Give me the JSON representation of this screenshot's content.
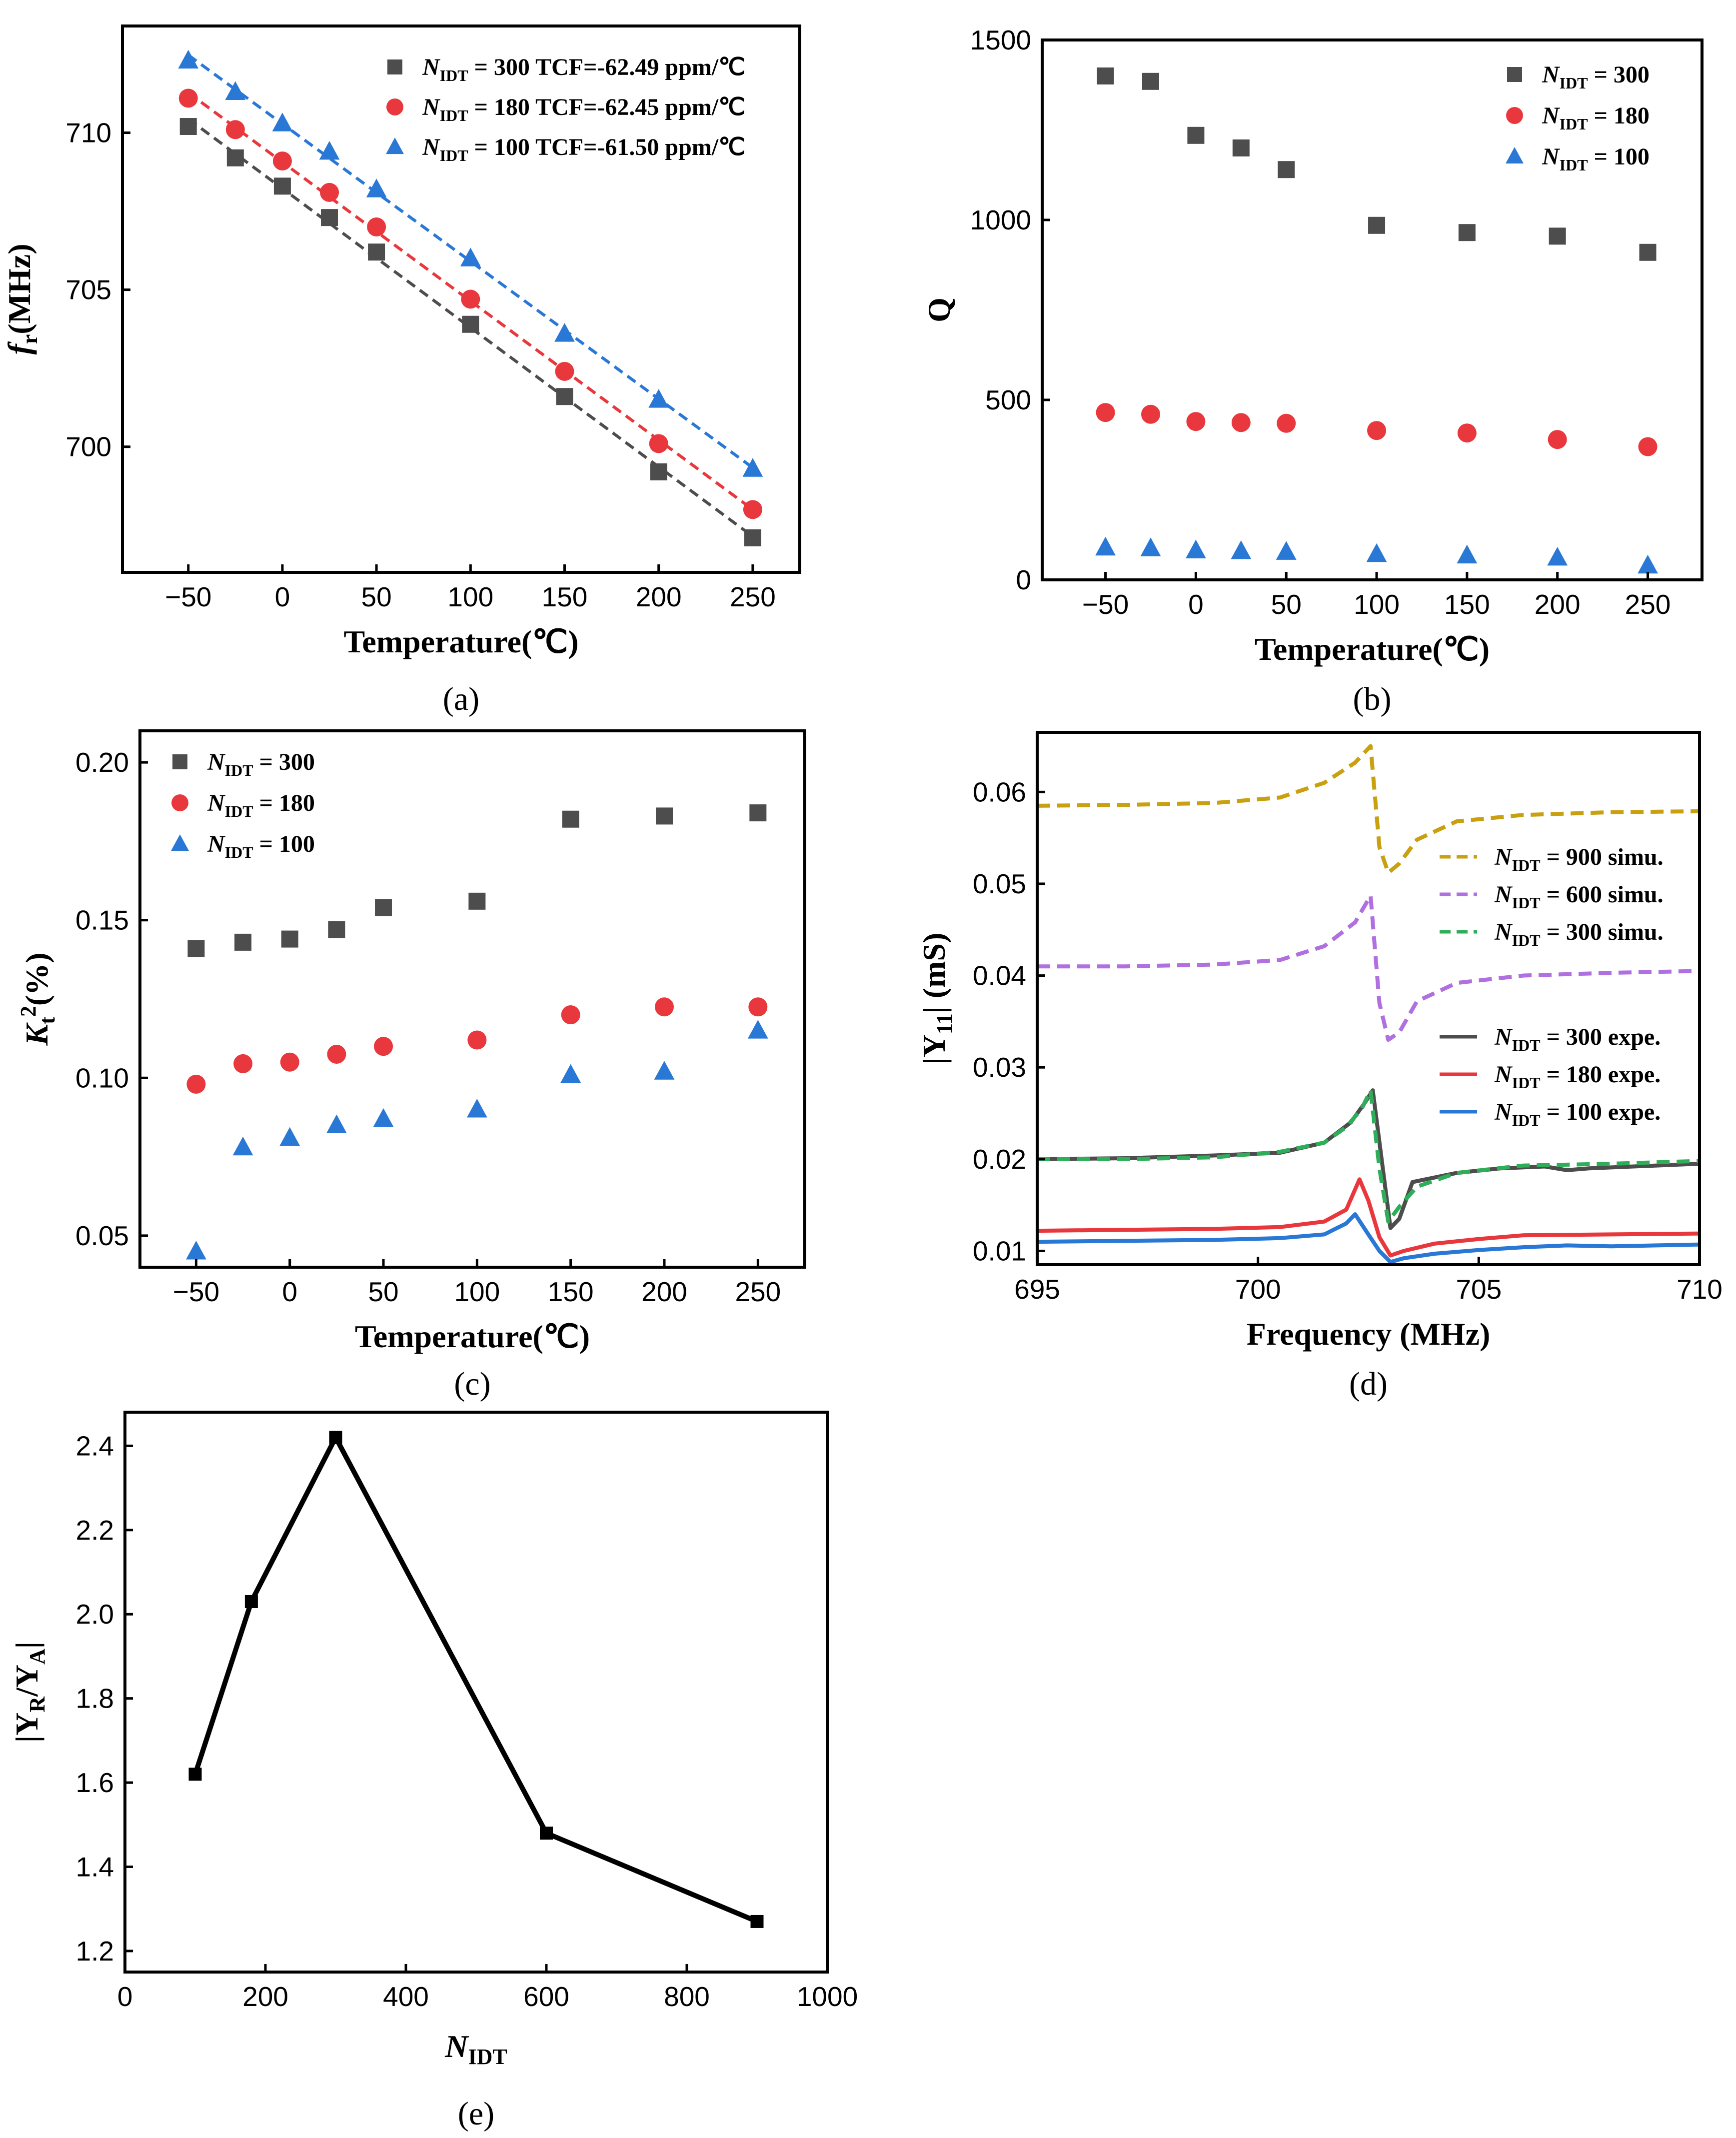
{
  "colors": {
    "N300": "#4d4d4d",
    "N180": "#e8383d",
    "N100": "#2a78d6",
    "N900sim": "#c9a010",
    "N600sim": "#b070e0",
    "N300sim": "#2fae5a",
    "axis": "#000000",
    "line_e": "#000000"
  },
  "chart_data": [
    {
      "id": "a",
      "type": "scatter",
      "panel_label": "(a)",
      "title": "",
      "xlabel": "Temperature(℃)",
      "ylabel": "f_r(MHz)",
      "xlim": [
        -85,
        275
      ],
      "ylim": [
        696.0,
        713.4
      ],
      "xticks": [
        -50,
        0,
        50,
        100,
        150,
        200,
        250
      ],
      "yticks": [
        700,
        705,
        710
      ],
      "x": [
        -50,
        -25,
        0,
        25,
        50,
        100,
        150,
        200,
        250
      ],
      "legend": {
        "position": "top-right"
      },
      "series": [
        {
          "key": "N300",
          "name_sub": "IDT",
          "name_text": " = 300 TCF=-62.49 ppm/℃",
          "marker": "square",
          "fit": true,
          "values": [
            710.2,
            709.2,
            708.3,
            707.3,
            706.2,
            703.9,
            701.6,
            699.2,
            697.1
          ]
        },
        {
          "key": "N180",
          "name_sub": "IDT",
          "name_text": " = 180 TCF=-62.45 ppm/℃",
          "marker": "circle",
          "fit": true,
          "values": [
            711.1,
            710.1,
            709.1,
            708.1,
            707.0,
            704.7,
            702.4,
            700.1,
            698.0
          ]
        },
        {
          "key": "N100",
          "name_sub": "IDT",
          "name_text": " = 100 TCF=-61.50 ppm/℃",
          "marker": "triangle",
          "fit": true,
          "values": [
            712.3,
            711.3,
            710.3,
            709.4,
            708.2,
            706.0,
            703.6,
            701.5,
            699.3
          ]
        }
      ]
    },
    {
      "id": "b",
      "type": "scatter",
      "panel_label": "(b)",
      "title": "",
      "xlabel": "Temperature(℃)",
      "ylabel": "Q",
      "xlim": [
        -85,
        280
      ],
      "ylim": [
        0,
        1500
      ],
      "xticks": [
        -50,
        0,
        50,
        100,
        150,
        200,
        250
      ],
      "yticks": [
        0,
        500,
        1000,
        1500
      ],
      "x": [
        -50,
        -25,
        0,
        25,
        50,
        100,
        150,
        200,
        250
      ],
      "legend": {
        "position": "top-right"
      },
      "series": [
        {
          "key": "N300",
          "name_sub": "IDT",
          "name_text": " = 300",
          "marker": "square",
          "values": [
            1400,
            1385,
            1235,
            1200,
            1140,
            985,
            965,
            955,
            910
          ]
        },
        {
          "key": "N180",
          "name_sub": "IDT",
          "name_text": " = 180",
          "marker": "circle",
          "values": [
            465,
            460,
            440,
            437,
            435,
            415,
            408,
            390,
            370
          ]
        },
        {
          "key": "N100",
          "name_sub": "IDT",
          "name_text": " = 100",
          "marker": "triangle",
          "values": [
            90,
            88,
            82,
            80,
            78,
            72,
            68,
            62,
            40
          ]
        }
      ]
    },
    {
      "id": "c",
      "type": "scatter",
      "panel_label": "(c)",
      "title": "",
      "xlabel": "Temperature(℃)",
      "ylabel": "K_t^2(%)",
      "xlim": [
        -80,
        275
      ],
      "ylim": [
        0.04,
        0.21
      ],
      "xticks": [
        -50,
        0,
        50,
        100,
        150,
        200,
        250
      ],
      "yticks": [
        0.05,
        0.1,
        0.15,
        0.2
      ],
      "ytick_labels": [
        "0.05",
        "0.10",
        "0.15",
        "0.20"
      ],
      "x": [
        -50,
        -25,
        0,
        25,
        50,
        100,
        150,
        200,
        250
      ],
      "legend": {
        "position": "top-left"
      },
      "series": [
        {
          "key": "N300",
          "name_sub": "IDT",
          "name_text": " = 300",
          "marker": "square",
          "values": [
            0.141,
            0.143,
            0.144,
            0.147,
            0.154,
            0.156,
            0.182,
            0.183,
            0.184
          ]
        },
        {
          "key": "N180",
          "name_sub": "IDT",
          "name_text": " = 180",
          "marker": "circle",
          "values": [
            0.098,
            0.1045,
            0.105,
            0.1075,
            0.11,
            0.112,
            0.12,
            0.1225,
            0.1225
          ]
        },
        {
          "key": "N100",
          "name_sub": "IDT",
          "name_text": " = 100",
          "marker": "triangle",
          "values": [
            0.045,
            0.078,
            0.081,
            0.085,
            0.087,
            0.09,
            0.101,
            0.102,
            0.115
          ]
        }
      ]
    },
    {
      "id": "d",
      "type": "line",
      "panel_label": "(d)",
      "title": "",
      "xlabel": "Frequency (MHz)",
      "ylabel": "|Y11| (mS)",
      "xlim": [
        695,
        710
      ],
      "ylim": [
        0.0085,
        0.0665
      ],
      "xticks": [
        695,
        700,
        705,
        710
      ],
      "yticks": [
        0.01,
        0.02,
        0.03,
        0.04,
        0.05,
        0.06
      ],
      "ytick_labels": [
        "0.01",
        "0.02",
        "0.03",
        "0.04",
        "0.05",
        "0.06"
      ],
      "legend": {
        "position": "right"
      },
      "series": [
        {
          "key": "N900sim",
          "name_sub": "IDT",
          "name_text": " = 900 simu.",
          "dashed": true,
          "x": [
            695,
            697,
            699,
            700.5,
            701.5,
            702.2,
            702.55,
            702.75,
            702.95,
            703.2,
            703.6,
            704.5,
            706,
            708,
            710
          ],
          "values": [
            0.0585,
            0.0586,
            0.0588,
            0.0594,
            0.061,
            0.0632,
            0.065,
            0.054,
            0.0512,
            0.0522,
            0.0548,
            0.0568,
            0.0575,
            0.0578,
            0.0579
          ]
        },
        {
          "key": "N600sim",
          "name_sub": "IDT",
          "name_text": " = 600 simu.",
          "dashed": true,
          "x": [
            695,
            697,
            699,
            700.5,
            701.5,
            702.2,
            702.55,
            702.75,
            702.95,
            703.2,
            703.6,
            704.5,
            706,
            708,
            710
          ],
          "values": [
            0.041,
            0.041,
            0.0412,
            0.0417,
            0.0432,
            0.0458,
            0.0487,
            0.037,
            0.033,
            0.0338,
            0.0372,
            0.0392,
            0.04,
            0.0403,
            0.0405
          ]
        },
        {
          "key": "N300sim",
          "name_sub": "IDT",
          "name_text": " = 300 simu.",
          "dashed": true,
          "x": [
            695,
            697,
            699,
            700.5,
            701.5,
            702.0,
            702.35,
            702.55,
            702.75,
            702.95,
            703.2,
            703.6,
            704.5,
            706,
            708,
            710
          ],
          "values": [
            0.02,
            0.02,
            0.0202,
            0.0208,
            0.0218,
            0.0235,
            0.0255,
            0.0275,
            0.019,
            0.0132,
            0.0148,
            0.017,
            0.0185,
            0.0193,
            0.0195,
            0.0198
          ]
        },
        {
          "key": "N300",
          "name_sub": "IDT",
          "name_text": " = 300 expe.",
          "dashed": false,
          "x": [
            695,
            697,
            699,
            700.5,
            701.5,
            702.1,
            702.4,
            702.6,
            702.8,
            703.0,
            703.2,
            703.5,
            704.0,
            704.5,
            705.5,
            706.5,
            707.0,
            707.5,
            708.5,
            710
          ],
          "values": [
            0.02,
            0.0201,
            0.0204,
            0.0207,
            0.0218,
            0.024,
            0.026,
            0.0275,
            0.02,
            0.0125,
            0.0135,
            0.0175,
            0.018,
            0.0185,
            0.019,
            0.0192,
            0.0188,
            0.019,
            0.0192,
            0.0195
          ]
        },
        {
          "key": "N180",
          "name_sub": "IDT",
          "name_text": " = 180 expe.",
          "dashed": false,
          "x": [
            695,
            697,
            699,
            700.5,
            701.5,
            702.0,
            702.3,
            702.5,
            702.75,
            703.0,
            703.3,
            704.0,
            705.0,
            706.0,
            708.0,
            710
          ],
          "values": [
            0.0122,
            0.0123,
            0.0124,
            0.0126,
            0.0132,
            0.0145,
            0.0178,
            0.0155,
            0.0115,
            0.0095,
            0.01,
            0.0108,
            0.0113,
            0.0117,
            0.0118,
            0.0119
          ]
        },
        {
          "key": "N100",
          "name_sub": "IDT",
          "name_text": " = 100 expe.",
          "dashed": false,
          "x": [
            695,
            697,
            699,
            700.5,
            701.5,
            702.0,
            702.2,
            702.5,
            702.75,
            703.0,
            703.3,
            704.0,
            705.0,
            706.0,
            707.0,
            708.0,
            710
          ],
          "values": [
            0.011,
            0.0111,
            0.0112,
            0.0114,
            0.0118,
            0.013,
            0.014,
            0.0118,
            0.01,
            0.0088,
            0.0092,
            0.0097,
            0.0101,
            0.0104,
            0.0106,
            0.0105,
            0.0107
          ]
        }
      ]
    },
    {
      "id": "e",
      "type": "line",
      "panel_label": "(e)",
      "title": "",
      "xlabel": "N_IDT",
      "ylabel": "|Y_R/Y_A|",
      "xlim": [
        0,
        1000
      ],
      "ylim": [
        1.15,
        2.48
      ],
      "xticks": [
        0,
        200,
        400,
        600,
        800,
        1000
      ],
      "yticks": [
        1.2,
        1.4,
        1.6,
        1.8,
        2.0,
        2.2,
        2.4
      ],
      "ytick_labels": [
        "1.2",
        "1.4",
        "1.6",
        "1.8",
        "2.0",
        "2.2",
        "2.4"
      ],
      "series": [
        {
          "key": "line_e",
          "name": "|YR/YA|",
          "marker": "square",
          "x": [
            100,
            180,
            300,
            600,
            900
          ],
          "values": [
            1.62,
            2.03,
            2.42,
            1.48,
            1.27
          ]
        }
      ]
    }
  ]
}
